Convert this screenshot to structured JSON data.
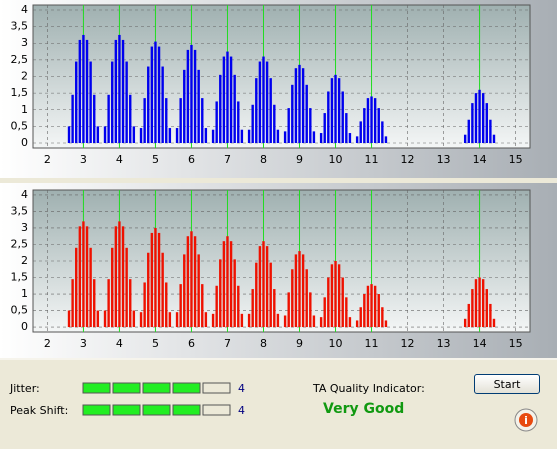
{
  "charts": [
    {
      "type": "bar",
      "color": "#0000ee",
      "grid": true,
      "xlim": [
        1.6,
        15.4
      ],
      "ylim": [
        -0.15,
        4.15
      ],
      "xticks": [
        2,
        3,
        4,
        5,
        6,
        7,
        8,
        9,
        10,
        11,
        12,
        13,
        14,
        15
      ],
      "yticks": [
        0,
        {
          "value": 0.5,
          "label": "0,5"
        },
        1,
        {
          "value": 1.5,
          "label": "1,5"
        },
        2,
        {
          "value": 2.5,
          "label": "2,5"
        },
        3,
        {
          "value": 3.5,
          "label": "3,5"
        },
        4
      ],
      "markers": [
        3,
        4,
        5,
        6,
        7,
        8,
        9,
        10,
        11,
        14
      ],
      "marker_color": "#22dd22",
      "x": [
        2.6,
        2.7,
        2.8,
        2.9,
        3,
        3.1,
        3.2,
        3.3,
        3.4,
        3.6,
        3.7,
        3.8,
        3.9,
        4,
        4.1,
        4.2,
        4.3,
        4.4,
        4.6,
        4.7,
        4.8,
        4.9,
        5,
        5.1,
        5.2,
        5.3,
        5.4,
        5.6,
        5.7,
        5.8,
        5.9,
        6,
        6.1,
        6.2,
        6.3,
        6.4,
        6.6,
        6.7,
        6.8,
        6.9,
        7,
        7.1,
        7.2,
        7.3,
        7.4,
        7.6,
        7.7,
        7.8,
        7.9,
        8,
        8.1,
        8.2,
        8.3,
        8.4,
        8.6,
        8.7,
        8.8,
        8.9,
        9,
        9.1,
        9.2,
        9.3,
        9.4,
        9.6,
        9.7,
        9.8,
        9.9,
        10,
        10.1,
        10.2,
        10.3,
        10.4,
        10.6,
        10.7,
        10.8,
        10.9,
        11,
        11.1,
        11.2,
        11.3,
        11.4,
        13.6,
        13.7,
        13.8,
        13.9,
        14,
        14.1,
        14.2,
        14.3,
        14.4
      ],
      "values": [
        0.5,
        1.45,
        2.45,
        3.1,
        3.25,
        3.1,
        2.45,
        1.45,
        0.5,
        0.5,
        1.45,
        2.45,
        3.1,
        3.25,
        3.1,
        2.45,
        1.45,
        0.5,
        0.45,
        1.35,
        2.3,
        2.9,
        3.05,
        2.9,
        2.3,
        1.35,
        0.45,
        0.45,
        1.35,
        2.2,
        2.8,
        2.95,
        2.8,
        2.2,
        1.35,
        0.45,
        0.4,
        1.25,
        2.05,
        2.6,
        2.75,
        2.6,
        2.05,
        1.25,
        0.4,
        0.4,
        1.15,
        1.95,
        2.45,
        2.6,
        2.45,
        1.95,
        1.15,
        0.4,
        0.35,
        1.05,
        1.75,
        2.25,
        2.35,
        2.25,
        1.75,
        1.05,
        0.35,
        0.3,
        0.9,
        1.55,
        1.95,
        2.05,
        1.95,
        1.55,
        0.9,
        0.3,
        0.2,
        0.65,
        1.05,
        1.35,
        1.4,
        1.35,
        1.05,
        0.65,
        0.2,
        0.25,
        0.7,
        1.2,
        1.5,
        1.6,
        1.5,
        1.2,
        0.7,
        0.25
      ]
    },
    {
      "type": "bar",
      "color": "#ee1100",
      "grid": true,
      "xlim": [
        1.6,
        15.4
      ],
      "ylim": [
        -0.15,
        4.15
      ],
      "xticks": [
        2,
        3,
        4,
        5,
        6,
        7,
        8,
        9,
        10,
        11,
        12,
        13,
        14,
        15
      ],
      "yticks": [
        0,
        {
          "value": 0.5,
          "label": "0,5"
        },
        1,
        {
          "value": 1.5,
          "label": "1,5"
        },
        2,
        {
          "value": 2.5,
          "label": "2,5"
        },
        3,
        {
          "value": 3.5,
          "label": "3,5"
        },
        4
      ],
      "markers": [
        3,
        4,
        5,
        6,
        7,
        8,
        9,
        10,
        11,
        14
      ],
      "marker_color": "#22dd22",
      "x": [
        2.6,
        2.7,
        2.8,
        2.9,
        3,
        3.1,
        3.2,
        3.3,
        3.4,
        3.6,
        3.7,
        3.8,
        3.9,
        4,
        4.1,
        4.2,
        4.3,
        4.4,
        4.6,
        4.7,
        4.8,
        4.9,
        5,
        5.1,
        5.2,
        5.3,
        5.4,
        5.6,
        5.7,
        5.8,
        5.9,
        6,
        6.1,
        6.2,
        6.3,
        6.4,
        6.6,
        6.7,
        6.8,
        6.9,
        7,
        7.1,
        7.2,
        7.3,
        7.4,
        7.6,
        7.7,
        7.8,
        7.9,
        8,
        8.1,
        8.2,
        8.3,
        8.4,
        8.6,
        8.7,
        8.8,
        8.9,
        9,
        9.1,
        9.2,
        9.3,
        9.4,
        9.6,
        9.7,
        9.8,
        9.9,
        10,
        10.1,
        10.2,
        10.3,
        10.4,
        10.6,
        10.7,
        10.8,
        10.9,
        11,
        11.1,
        11.2,
        11.3,
        11.4,
        13.6,
        13.7,
        13.8,
        13.9,
        14,
        14.1,
        14.2,
        14.3,
        14.4
      ],
      "values": [
        0.5,
        1.45,
        2.4,
        3.05,
        3.2,
        3.05,
        2.4,
        1.45,
        0.5,
        0.5,
        1.45,
        2.4,
        3.05,
        3.2,
        3.05,
        2.4,
        1.45,
        0.5,
        0.45,
        1.35,
        2.25,
        2.85,
        3,
        2.85,
        2.25,
        1.35,
        0.45,
        0.45,
        1.3,
        2.2,
        2.75,
        2.9,
        2.75,
        2.2,
        1.3,
        0.45,
        0.4,
        1.25,
        2.05,
        2.6,
        2.75,
        2.6,
        2.05,
        1.25,
        0.4,
        0.4,
        1.15,
        1.95,
        2.45,
        2.6,
        2.45,
        1.95,
        1.15,
        0.4,
        0.35,
        1.05,
        1.75,
        2.2,
        2.3,
        2.2,
        1.75,
        1.05,
        0.35,
        0.3,
        0.9,
        1.5,
        1.9,
        2,
        1.9,
        1.5,
        0.9,
        0.3,
        0.2,
        0.6,
        1,
        1.25,
        1.3,
        1.25,
        1,
        0.6,
        0.2,
        0.25,
        0.7,
        1.15,
        1.45,
        1.5,
        1.45,
        1.15,
        0.7,
        0.25
      ]
    }
  ],
  "jitter": {
    "label": "Jitter:",
    "value": 4
  },
  "peak_shift": {
    "label": "Peak Shift:",
    "value": 4
  },
  "quality": {
    "label": "TA Quality Indicator:",
    "value": "Very Good"
  },
  "start_button": "Start"
}
